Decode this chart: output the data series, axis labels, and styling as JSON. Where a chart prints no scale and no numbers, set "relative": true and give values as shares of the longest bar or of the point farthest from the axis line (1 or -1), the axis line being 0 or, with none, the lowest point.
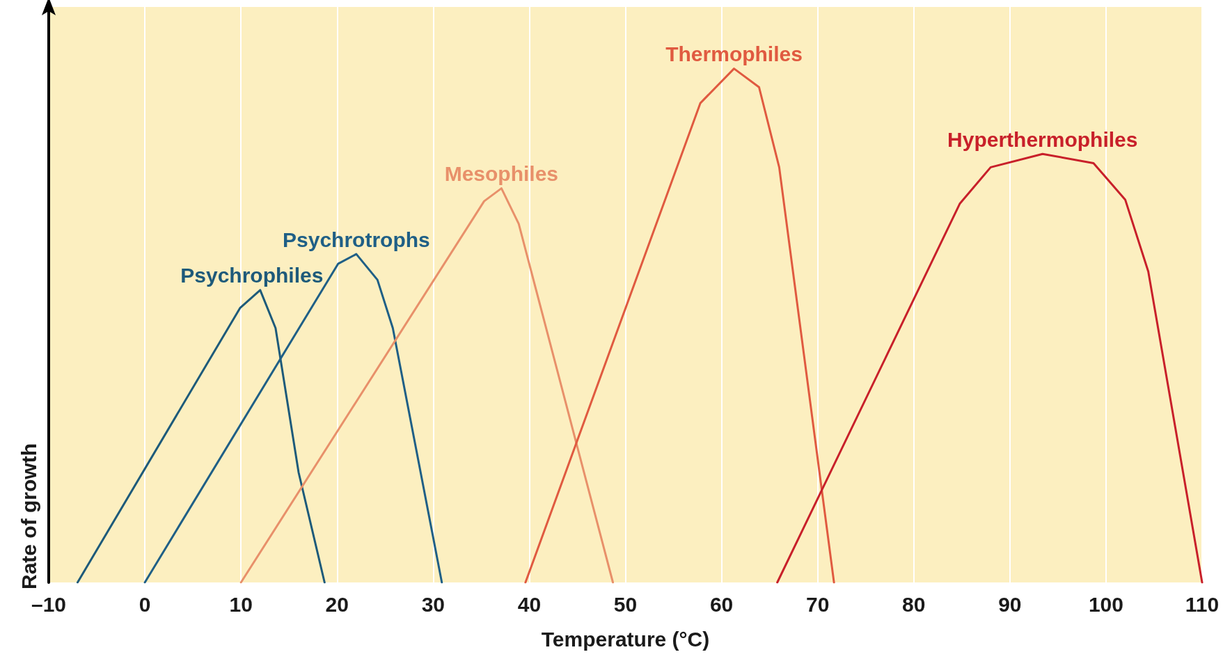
{
  "chart_data": {
    "type": "line",
    "relative": true,
    "xlabel": "Temperature (°C)",
    "ylabel": "Rate of growth",
    "xlim": [
      -10,
      110
    ],
    "xticks": [
      {
        "value": -10,
        "label": "–10"
      },
      0,
      10,
      20,
      30,
      40,
      50,
      60,
      70,
      80,
      90,
      100,
      110
    ],
    "grid": "x",
    "legend": false,
    "marker": "none",
    "line_style": "solid",
    "series": [
      {
        "name": "Psychrophiles",
        "color": "#1d5a7a",
        "x": [
          -7,
          9.9,
          12,
          13.6,
          16,
          18.7
        ],
        "values": [
          0,
          0.534,
          0.569,
          0.495,
          0.214,
          0
        ]
      },
      {
        "name": "Psychrotrophs",
        "color": "#1f5f86",
        "x": [
          0,
          20.1,
          22,
          24.2,
          25.8,
          30.9
        ],
        "values": [
          0,
          0.62,
          0.639,
          0.589,
          0.495,
          0
        ]
      },
      {
        "name": "Mesophiles",
        "color": "#e8906a",
        "x": [
          10,
          35.3,
          37.1,
          38.9,
          48.7
        ],
        "values": [
          0,
          0.742,
          0.767,
          0.698,
          0
        ]
      },
      {
        "name": "Thermophiles",
        "color": "#e05a40",
        "x": [
          39.6,
          57.8,
          61.3,
          63.9,
          66,
          71.7
        ],
        "values": [
          0,
          0.933,
          1,
          0.964,
          0.808,
          0
        ]
      },
      {
        "name": "Hyperthermophiles",
        "color": "#c8202a",
        "x": [
          65.8,
          84.8,
          88,
          93.4,
          98.7,
          102,
          104.4,
          110
        ],
        "values": [
          0,
          0.7375,
          0.808,
          0.834,
          0.816,
          0.745,
          0.605,
          0
        ]
      }
    ]
  }
}
